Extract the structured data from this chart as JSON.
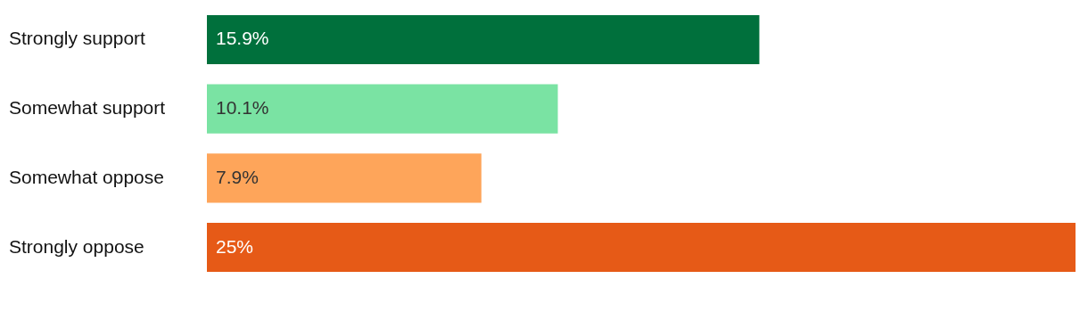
{
  "chart_data": {
    "type": "bar",
    "orientation": "horizontal",
    "categories": [
      "Strongly support",
      "Somewhat support",
      "Somewhat oppose",
      "Strongly oppose"
    ],
    "values": [
      15.9,
      10.1,
      7.9,
      25
    ],
    "colors": [
      "#00703c",
      "#7ae3a3",
      "#fea55a",
      "#e65a17"
    ],
    "value_labels": [
      "15.9%",
      "10.1%",
      "7.9%",
      "25%"
    ],
    "xlim": [
      0,
      25
    ],
    "tick_labels": "y",
    "grid": false
  }
}
